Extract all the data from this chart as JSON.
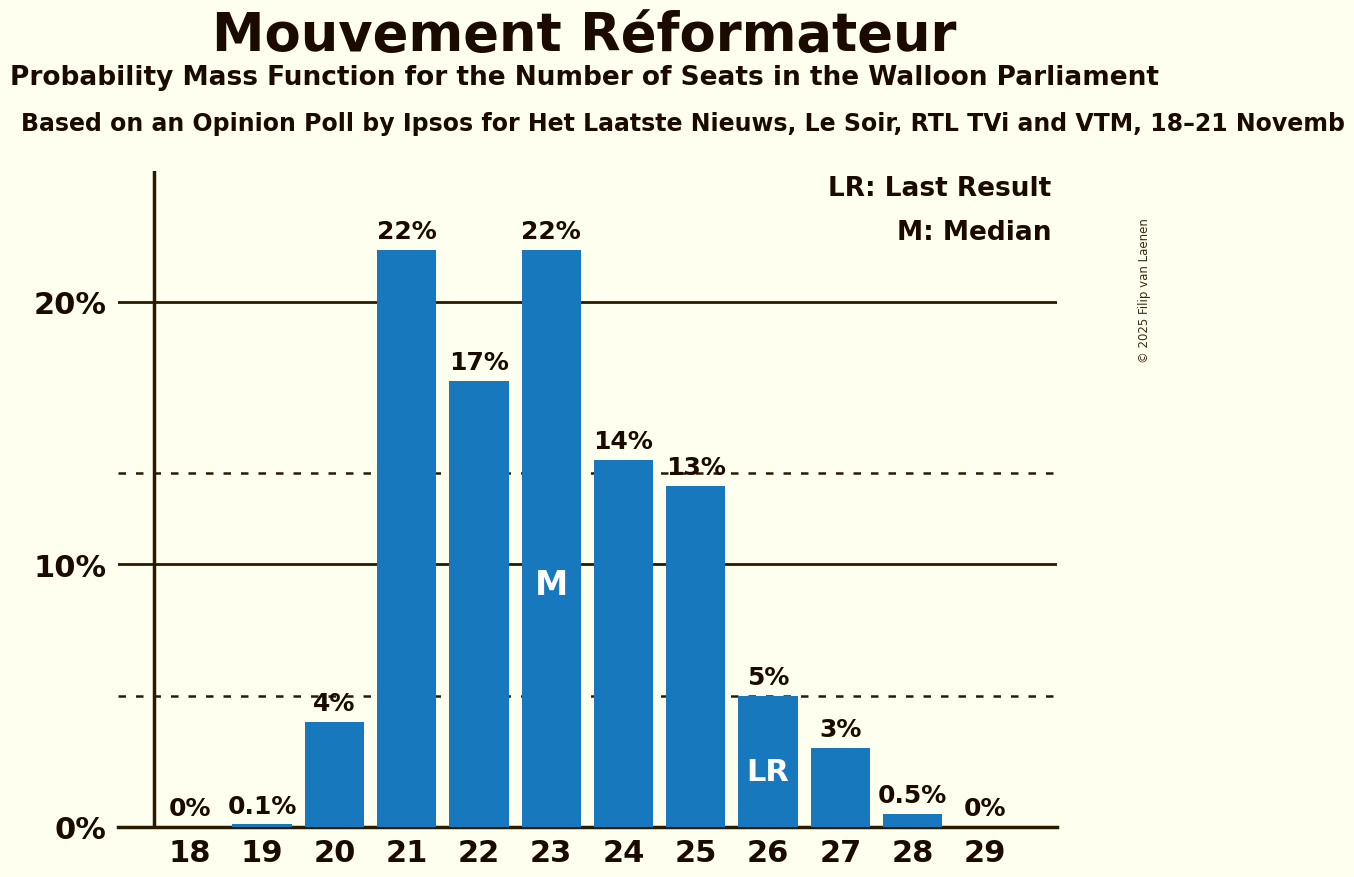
{
  "title": "Mouvement Réformateur",
  "subtitle": "Probability Mass Function for the Number of Seats in the Walloon Parliament",
  "subtitle2": "Based on an Opinion Poll by Ipsos for Het Laatste Nieuws, Le Soir, RTL TVi and VTM, 18–21 Novemb",
  "copyright": "© 2025 Filip van Laenen",
  "categories": [
    18,
    19,
    20,
    21,
    22,
    23,
    24,
    25,
    26,
    27,
    28,
    29
  ],
  "values": [
    0.0,
    0.1,
    4.0,
    22.0,
    17.0,
    22.0,
    14.0,
    13.0,
    5.0,
    3.0,
    0.5,
    0.0
  ],
  "bar_color": "#1878be",
  "background_color": "#fffff0",
  "title_color": "#1a0a00",
  "bar_labels": [
    "0%",
    "0.1%",
    "4%",
    "22%",
    "17%",
    "22%",
    "14%",
    "13%",
    "5%",
    "3%",
    "0.5%",
    "0%"
  ],
  "label_color_outside": "#1a0a00",
  "label_color_inside": "#ffffff",
  "median_seat": 23,
  "median_label": "M",
  "lr_seat": 26,
  "lr_label": "LR",
  "legend_lr": "LR: Last Result",
  "legend_m": "M: Median",
  "yticks": [
    0,
    10,
    20
  ],
  "ytick_labels": [
    "0%",
    "10%",
    "20%"
  ],
  "dotted_lines": [
    5.0,
    13.5
  ],
  "ylim": [
    0,
    25
  ],
  "title_fontsize": 38,
  "subtitle_fontsize": 19,
  "subtitle2_fontsize": 17,
  "axis_tick_fontsize": 22,
  "bar_label_fontsize": 18,
  "legend_fontsize": 19,
  "inside_label_fontsize": 24
}
